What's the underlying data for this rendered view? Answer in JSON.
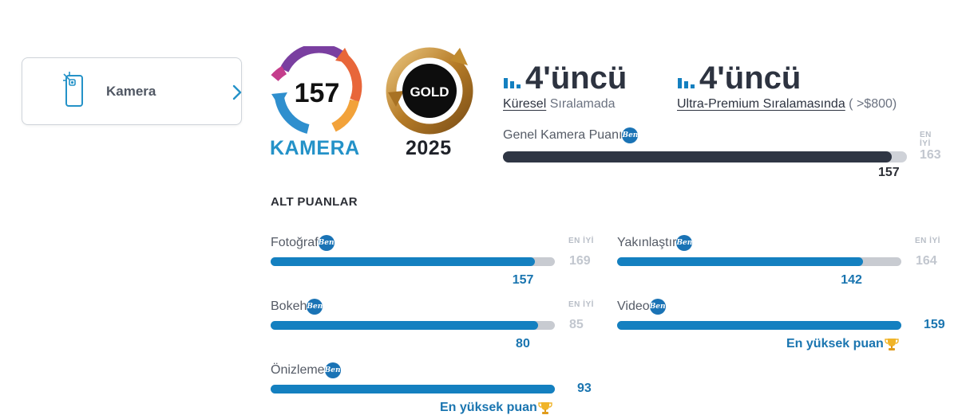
{
  "sidebar": {
    "item_label": "Kamera",
    "icon": "phone-camera-icon",
    "chevron": "chevron-right-icon"
  },
  "badges": {
    "camera_score": "157",
    "camera_caption": "KAMERA",
    "gold_label": "GOLD",
    "gold_year": "2025"
  },
  "rankings": [
    {
      "value": "4'üncü",
      "link": "Küresel",
      "suffix": " Sıralamada",
      "extra": ""
    },
    {
      "value": "4'üncü",
      "link": "Ultra-Premium Sıralamasında",
      "suffix": "",
      "extra": " ( >$800)"
    }
  ],
  "overall": {
    "label": "Genel Kamera Puanı",
    "best_label": "EN İYİ",
    "best": 163,
    "value": 157
  },
  "sub_title": "ALT PUANLAR",
  "sub_scores": [
    {
      "label": "Fotoğraf",
      "best_label": "EN İYİ",
      "best": 169,
      "value": 157,
      "top_note": ""
    },
    {
      "label": "Yakınlaştır",
      "best_label": "EN İYİ",
      "best": 164,
      "value": 142,
      "top_note": ""
    },
    {
      "label": "Bokeh",
      "best_label": "EN İYİ",
      "best": 85,
      "value": 80,
      "top_note": ""
    },
    {
      "label": "Video",
      "best_label": "",
      "best": 159,
      "value": 159,
      "top_note": "En yüksek puan"
    },
    {
      "label": "Önizleme",
      "best_label": "",
      "best": 93,
      "value": 93,
      "top_note": "En yüksek puan"
    }
  ],
  "info_badge_text": "Ben",
  "colors": {
    "accent_blue": "#1480c0",
    "track_gray": "#c8cbd1",
    "dark_bar": "#2f3644",
    "gold": "#c08a2e"
  }
}
